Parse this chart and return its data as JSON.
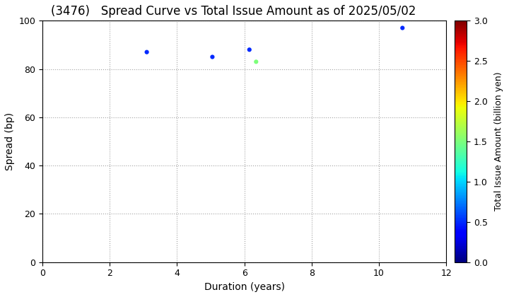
{
  "title": "(3476)   Spread Curve vs Total Issue Amount as of 2025/05/02",
  "xlabel": "Duration (years)",
  "ylabel": "Spread (bp)",
  "colorbar_label": "Total Issue Amount (billion yen)",
  "xlim": [
    0,
    12
  ],
  "ylim": [
    0,
    100
  ],
  "xticks": [
    0,
    2,
    4,
    6,
    8,
    10,
    12
  ],
  "yticks": [
    0,
    20,
    40,
    60,
    80,
    100
  ],
  "colorbar_min": 0.0,
  "colorbar_max": 3.0,
  "colorbar_ticks": [
    0.0,
    0.5,
    1.0,
    1.5,
    2.0,
    2.5,
    3.0
  ],
  "points": [
    {
      "duration": 3.1,
      "spread": 87,
      "amount": 0.5
    },
    {
      "duration": 5.05,
      "spread": 85,
      "amount": 0.5
    },
    {
      "duration": 6.15,
      "spread": 88,
      "amount": 0.5
    },
    {
      "duration": 6.35,
      "spread": 83,
      "amount": 1.5
    },
    {
      "duration": 10.7,
      "spread": 97,
      "amount": 0.5
    }
  ],
  "marker_size": 20,
  "background_color": "#ffffff",
  "grid_color": "#999999",
  "title_fontsize": 12,
  "axis_label_fontsize": 10,
  "tick_fontsize": 9,
  "colorbar_label_fontsize": 9,
  "colorbar_tick_fontsize": 9
}
